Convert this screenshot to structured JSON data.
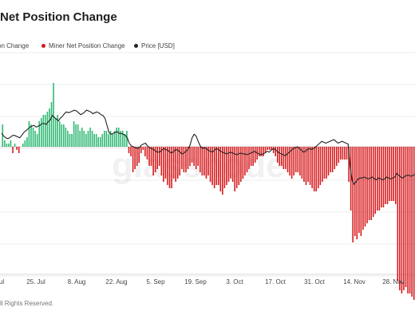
{
  "header": {
    "title": "Net Position Change"
  },
  "legend": {
    "items": [
      {
        "label": "on Change",
        "color": "#2eb872"
      },
      {
        "label": "Miner Net Position Change",
        "color": "#d7191c"
      },
      {
        "label": "Price [USD]",
        "color": "#222222"
      }
    ]
  },
  "footer": {
    "text": "ll Rights Reserved."
  },
  "watermark": {
    "text": "glassnode"
  },
  "chart_data": {
    "type": "bar",
    "title": "Net Position Change",
    "x_tick_labels": [
      "ul",
      "25. Jul",
      "8. Aug",
      "22. Aug",
      "5. Sep",
      "19. Sep",
      "3. Oct",
      "17. Oct",
      "31. Oct",
      "14. Nov",
      "28. Nov"
    ],
    "series": [
      {
        "name": "Miner Net Position Change",
        "type": "bar",
        "positive_color": "#2eb872",
        "negative_color": "#d7191c",
        "values": [
          7,
          2,
          1,
          1,
          2,
          -2,
          1,
          -1,
          -2,
          0,
          1,
          2,
          3,
          8,
          7,
          6,
          5,
          4,
          8,
          9,
          10,
          10,
          11,
          12,
          14,
          20,
          9,
          10,
          8,
          7,
          7,
          6,
          5,
          4,
          4,
          8,
          7,
          7,
          5,
          6,
          5,
          4,
          5,
          6,
          5,
          4,
          4,
          3,
          3,
          4,
          5,
          5,
          4,
          5,
          4,
          5,
          6,
          6,
          5,
          5,
          4,
          5,
          -2,
          -3,
          -8,
          -7,
          -6,
          -5,
          -2,
          -1,
          -3,
          -4,
          -6,
          -6,
          -9,
          -8,
          -7,
          -6,
          -9,
          -11,
          -10,
          -12,
          -13,
          -13,
          -10,
          -11,
          -10,
          -9,
          -7,
          -8,
          -8,
          -7,
          -6,
          -5,
          -6,
          -7,
          -6,
          -8,
          -9,
          -9,
          -10,
          -9,
          -11,
          -12,
          -13,
          -12,
          -12,
          -14,
          -15,
          -13,
          -12,
          -11,
          -10,
          -11,
          -14,
          -13,
          -12,
          -11,
          -10,
          -9,
          -8,
          -7,
          -6,
          -6,
          -5,
          -4,
          -3,
          -3,
          -3,
          -2,
          -1,
          -1,
          -1,
          -2,
          -3,
          -5,
          -6,
          -6,
          -7,
          -7,
          -8,
          -9,
          -10,
          -9,
          -8,
          -8,
          -9,
          -10,
          -11,
          -12,
          -11,
          -12,
          -13,
          -14,
          -14,
          -13,
          -12,
          -11,
          -10,
          -10,
          -9,
          -8,
          -8,
          -7,
          -6,
          -5,
          -4,
          -4,
          -4,
          -4,
          -11,
          -20,
          -30,
          -28,
          -29,
          -27,
          -28,
          -26,
          -25,
          -24,
          -23,
          -23,
          -22,
          -21,
          -20,
          -20,
          -19,
          -19,
          -18,
          -18,
          -17,
          -17,
          -17,
          -18,
          -42,
          -45,
          -46,
          -45,
          -44,
          -46,
          -46,
          -47,
          -48
        ]
      },
      {
        "name": "Price [USD]",
        "type": "line",
        "color": "#222222",
        "values": [
          21.5,
          21.2,
          21.0,
          20.9,
          21.0,
          21.2,
          21.3,
          21.2,
          21.1,
          21.0,
          21.3,
          21.6,
          21.8,
          22.0,
          22.2,
          22.3,
          22.4,
          22.2,
          22.3,
          22.4,
          22.6,
          22.6,
          22.5,
          22.8,
          23.0,
          23.5,
          23.3,
          23.1,
          22.9,
          23.2,
          23.4,
          23.7,
          23.9,
          23.8,
          23.9,
          24.0,
          24.1,
          24.0,
          23.8,
          23.6,
          23.7,
          23.9,
          24.1,
          24.0,
          23.9,
          23.7,
          23.8,
          23.9,
          23.8,
          23.6,
          23.5,
          23.2,
          22.4,
          21.6,
          21.4,
          21.5,
          21.6,
          21.7,
          21.5,
          21.5,
          21.4,
          21.3,
          21.0,
          20.4,
          20.1,
          20.0,
          19.9,
          19.8,
          19.9,
          20.2,
          20.3,
          20.4,
          20.1,
          19.9,
          19.8,
          19.7,
          19.5,
          19.4,
          19.4,
          19.6,
          19.8,
          19.7,
          19.6,
          19.4,
          19.3,
          19.5,
          19.7,
          19.6,
          19.4,
          19.2,
          19.3,
          19.5,
          19.7,
          20.2,
          21.0,
          21.4,
          21.2,
          20.6,
          20.1,
          19.8,
          19.9,
          19.8,
          19.6,
          19.5,
          19.4,
          19.6,
          19.8,
          19.7,
          19.5,
          19.4,
          19.3,
          19.2,
          19.3,
          19.4,
          19.3,
          19.2,
          19.1,
          19.2,
          19.3,
          19.2,
          19.2,
          19.1,
          19.2,
          19.3,
          19.4,
          19.5,
          19.3,
          19.2,
          19.1,
          19.2,
          19.3,
          19.5,
          19.4,
          19.6,
          19.8,
          19.7,
          19.5,
          19.3,
          19.2,
          19.1,
          19.0,
          19.2,
          19.4,
          19.6,
          19.8,
          19.9,
          20.0,
          19.8,
          19.6,
          19.4,
          19.5,
          19.7,
          19.8,
          19.7,
          19.8,
          20.0,
          20.2,
          20.4,
          20.6,
          20.5,
          20.4,
          20.5,
          20.6,
          20.7,
          20.8,
          20.6,
          20.4,
          20.5,
          20.6,
          20.5,
          20.4,
          20.3,
          17.8,
          16.2,
          15.8,
          16.1,
          16.4,
          16.5,
          16.5,
          16.6,
          16.5,
          16.4,
          16.5,
          16.6,
          16.4,
          16.3,
          16.5,
          16.4,
          16.3,
          16.4,
          16.6,
          16.5,
          16.4,
          16.5,
          16.6,
          17.0,
          16.8,
          16.6,
          16.5,
          16.7,
          16.8,
          16.8,
          16.7,
          16.8,
          16.9
        ]
      }
    ],
    "grid": true,
    "legend_position": "top-left"
  }
}
